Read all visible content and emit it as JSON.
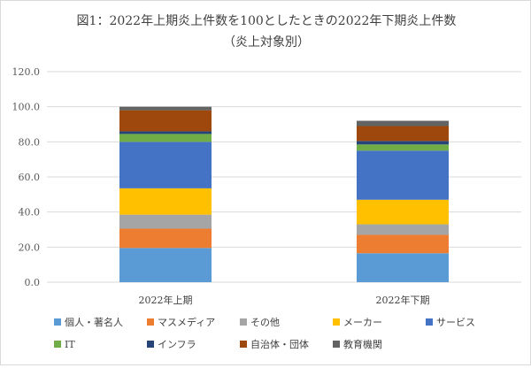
{
  "chart_data": {
    "type": "bar",
    "stacked": true,
    "title": "図1：2022年上期炎上件数を100としたときの2022年下期炎上件数",
    "subtitle": "（炎上対象別）",
    "xlabel": "",
    "ylabel": "",
    "ylim": [
      0,
      120
    ],
    "yticks": [
      "0.0",
      "20.0",
      "40.0",
      "60.0",
      "80.0",
      "100.0",
      "120.0"
    ],
    "grid": true,
    "legend_position": "bottom",
    "categories": [
      "2022年上期",
      "2022年下期"
    ],
    "series": [
      {
        "name": "個人・著名人",
        "color": "#5B9BD5",
        "values": [
          19.5,
          16.5
        ]
      },
      {
        "name": "マスメディア",
        "color": "#ED7D31",
        "values": [
          11.0,
          10.5
        ]
      },
      {
        "name": "その他",
        "color": "#A5A5A5",
        "values": [
          8.0,
          6.0
        ]
      },
      {
        "name": "メーカー",
        "color": "#FFC000",
        "values": [
          15.0,
          14.0
        ]
      },
      {
        "name": "サービス",
        "color": "#4472C4",
        "values": [
          26.5,
          28.0
        ]
      },
      {
        "name": "IT",
        "color": "#70AD47",
        "values": [
          4.5,
          3.5
        ]
      },
      {
        "name": "インフラ",
        "color": "#264478",
        "values": [
          1.5,
          2.0
        ]
      },
      {
        "name": "自治体・団体",
        "color": "#9E480E",
        "values": [
          12.0,
          8.5
        ]
      },
      {
        "name": "教育機関",
        "color": "#636363",
        "values": [
          2.0,
          3.0
        ]
      }
    ]
  }
}
